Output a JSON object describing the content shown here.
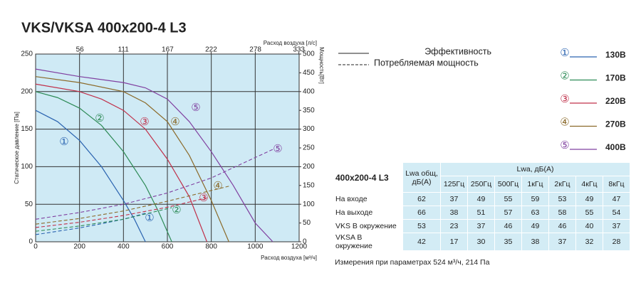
{
  "chart_data": {
    "type": "line",
    "title": "VKS/VKSA 400x200-4 L3",
    "x_label": "Расход воздуха [м³/ч]",
    "x2_label": "Расход воздуха [л/с]",
    "y_label": "Статическое давление [Па]",
    "y2_label": "Мощность[Вт]",
    "xlim": [
      0,
      1200
    ],
    "xticks": [
      0,
      200,
      400,
      600,
      800,
      1000,
      1200
    ],
    "x2lim": [
      0,
      333.3
    ],
    "x2ticks": [
      56,
      111,
      167,
      222,
      278,
      333
    ],
    "ylim": [
      0,
      250
    ],
    "yticks": [
      0,
      50,
      100,
      150,
      200,
      250
    ],
    "y2lim": [
      0,
      500
    ],
    "y2ticks": [
      0,
      50,
      100,
      150,
      200,
      250,
      300,
      350,
      400,
      450,
      500
    ],
    "grid": true,
    "line_styles": [
      {
        "label": "Эффективность",
        "dash": false
      },
      {
        "label": "Потребляемая мощность",
        "dash": true
      }
    ],
    "series": [
      {
        "name": "130В",
        "marker": "①",
        "color": "#2a63b0",
        "x": [
          0,
          100,
          200,
          300,
          400,
          450,
          500
        ],
        "values": [
          175,
          160,
          135,
          100,
          55,
          30,
          0
        ],
        "power_x": [
          0,
          100,
          200,
          300,
          400,
          500
        ],
        "power_values": [
          19,
          28,
          37,
          48,
          60,
          76
        ]
      },
      {
        "name": "170В",
        "marker": "②",
        "color": "#2e8b57",
        "x": [
          0,
          100,
          200,
          300,
          400,
          500,
          560,
          620
        ],
        "values": [
          200,
          192,
          178,
          155,
          120,
          75,
          40,
          0
        ],
        "power_x": [
          0,
          200,
          400,
          620
        ],
        "power_values": [
          28,
          42,
          60,
          91
        ]
      },
      {
        "name": "220В",
        "marker": "③",
        "color": "#c0304a",
        "x": [
          0,
          200,
          300,
          400,
          500,
          600,
          700,
          780
        ],
        "values": [
          210,
          200,
          190,
          175,
          150,
          110,
          60,
          0
        ],
        "power_x": [
          0,
          200,
          400,
          600,
          780
        ],
        "power_values": [
          38,
          52,
          70,
          92,
          117
        ]
      },
      {
        "name": "270В",
        "marker": "④",
        "color": "#8b6a2a",
        "x": [
          0,
          200,
          400,
          500,
          600,
          700,
          800,
          880
        ],
        "values": [
          220,
          212,
          200,
          185,
          160,
          115,
          55,
          0
        ],
        "power_x": [
          0,
          200,
          400,
          600,
          880
        ],
        "power_values": [
          47,
          62,
          82,
          108,
          148
        ]
      },
      {
        "name": "400В",
        "marker": "⑤",
        "color": "#8040a0",
        "x": [
          0,
          200,
          400,
          500,
          600,
          700,
          800,
          900,
          1000,
          1080
        ],
        "values": [
          230,
          220,
          212,
          205,
          190,
          160,
          120,
          75,
          25,
          0
        ],
        "power_x": [
          0,
          200,
          400,
          600,
          800,
          1080
        ],
        "power_values": [
          60,
          78,
          100,
          130,
          170,
          246
        ]
      }
    ]
  },
  "table": {
    "title": "400x200-4 L3",
    "total_header": "Lwa общ, дБ(А)",
    "band_header": "Lwa, дБ(А)",
    "bands": [
      "125Гц",
      "250Гц",
      "500Гц",
      "1кГц",
      "2кГц",
      "4кГц",
      "8кГц"
    ],
    "rows": [
      [
        "На входе",
        "62",
        "37",
        "49",
        "55",
        "59",
        "53",
        "49",
        "47"
      ],
      [
        "На выходе",
        "66",
        "38",
        "51",
        "57",
        "63",
        "58",
        "55",
        "54"
      ],
      [
        "VKS В окружение",
        "53",
        "23",
        "37",
        "46",
        "49",
        "46",
        "40",
        "37"
      ],
      [
        "VKSA В окружение",
        "42",
        "17",
        "30",
        "35",
        "38",
        "37",
        "32",
        "28"
      ]
    ],
    "note": "Измерения при параметрах 524 м³/ч, 214 Па"
  }
}
